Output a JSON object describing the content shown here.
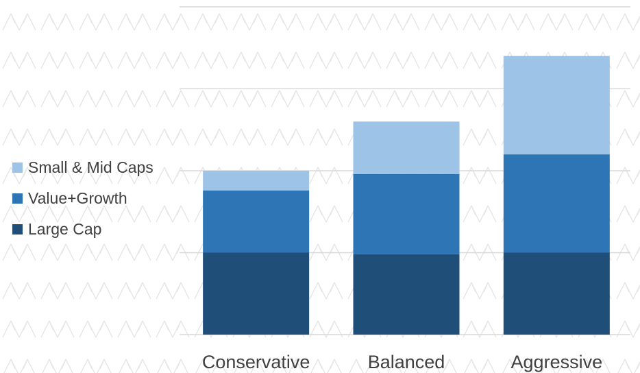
{
  "chart_data": {
    "type": "bar",
    "stacked": true,
    "title": "",
    "xlabel": "",
    "ylabel": "",
    "y_ticks_shown": false,
    "grid": "horizontal",
    "ylim": [
      0,
      100
    ],
    "gridlines": [
      0,
      25,
      50,
      75,
      100
    ],
    "categories": [
      "Conservative",
      "Balanced",
      "Aggressive"
    ],
    "series": [
      {
        "name": "Large Cap",
        "values": [
          25,
          24.5,
          25
        ],
        "color": "#1F4E79"
      },
      {
        "name": "Value+Growth",
        "values": [
          19,
          24.5,
          30
        ],
        "color": "#2E75B6"
      },
      {
        "name": "Small & Mid Caps",
        "values": [
          6,
          16,
          30
        ],
        "color": "#9DC3E6"
      }
    ],
    "legend_position": "left",
    "legend_order": [
      "Small & Mid Caps",
      "Value+Growth",
      "Large Cap"
    ],
    "background_watermark": "repeating-peak-logo"
  }
}
